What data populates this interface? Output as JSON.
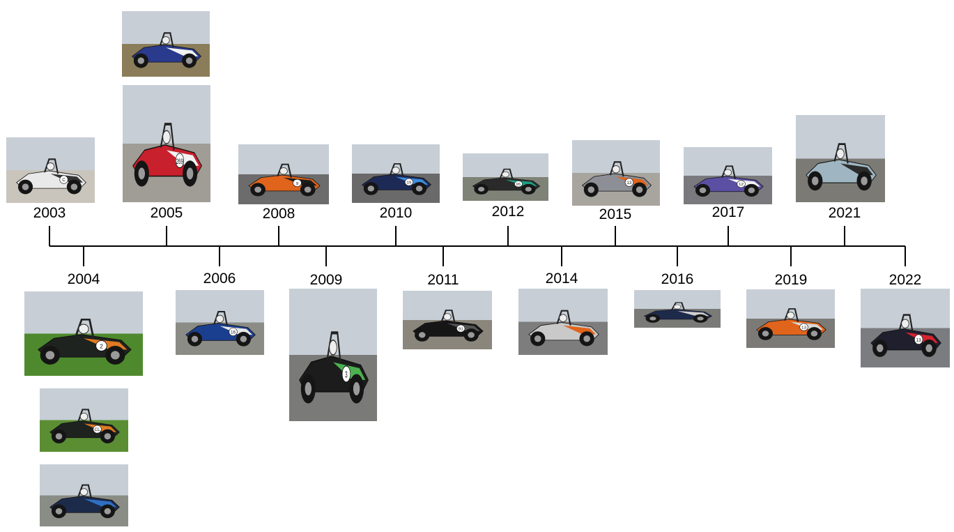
{
  "timeline": {
    "years": [
      "2003",
      "2004",
      "2005",
      "2006",
      "2008",
      "2009",
      "2010",
      "2011",
      "2012",
      "2014",
      "2015",
      "2016",
      "2017",
      "2019",
      "2021",
      "2022"
    ]
  },
  "photos": {
    "y2003": {
      "body": "#e9e9e9",
      "accent": "#333333",
      "ground": "#c9c5bd",
      "number": "C"
    },
    "y2004a": {
      "body": "#1f2320",
      "accent": "#e07a22",
      "ground": "#4e8a2d",
      "number": "2"
    },
    "y2004b": {
      "body": "#1f2320",
      "accent": "#e07a22",
      "ground": "#5b8e33",
      "number": "CL"
    },
    "y2004c": {
      "body": "#1d2b4a",
      "accent": "#2f6fc4",
      "ground": "#8a8d86",
      "number": ""
    },
    "y2005a": {
      "body": "#2a3a8c",
      "accent": "#f2f2f2",
      "ground": "#8c7d5a",
      "number": ""
    },
    "y2005b": {
      "body": "#c8202c",
      "accent": "#f2f2f2",
      "ground": "#a09c96",
      "number": "269"
    },
    "y2006": {
      "body": "#1b3f8f",
      "accent": "#e8e8e8",
      "ground": "#8c8c86",
      "number": "16"
    },
    "y2008": {
      "body": "#e0641b",
      "accent": "#1c1c1c",
      "ground": "#6c6c6c",
      "number": "9"
    },
    "y2009": {
      "body": "#1c1c1c",
      "accent": "#4caf50",
      "ground": "#7a7a78",
      "number": "3"
    },
    "y2010": {
      "body": "#1d2a55",
      "accent": "#3d8de0",
      "ground": "#6a6a6a",
      "number": "19"
    },
    "y2011": {
      "body": "#161616",
      "accent": "#555555",
      "ground": "#8b867c",
      "number": "91"
    },
    "y2012": {
      "body": "#2a2a2a",
      "accent": "#1e9c7f",
      "ground": "#7f8276",
      "number": "95"
    },
    "y2014": {
      "body": "#c9c9c9",
      "accent": "#e0641b",
      "ground": "#7d7d7d",
      "number": ""
    },
    "y2015": {
      "body": "#8c8f95",
      "accent": "#e0641b",
      "ground": "#a8a49e",
      "number": "13"
    },
    "y2016": {
      "body": "#1e2a4a",
      "accent": "#cfcfcf",
      "ground": "#7a7a76",
      "number": ""
    },
    "y2017": {
      "body": "#5b4fa3",
      "accent": "#f2f2f2",
      "ground": "#7a7a7e",
      "number": "12"
    },
    "y2019": {
      "body": "#e0641b",
      "accent": "#d9d9d9",
      "ground": "#7b7a76",
      "number": "13"
    },
    "y2021": {
      "body": "#9fb6c2",
      "accent": "#2b2b2b",
      "ground": "#7b7a74",
      "number": ""
    },
    "y2022": {
      "body": "#1f1f2e",
      "accent": "#d7232f",
      "ground": "#7a7c80",
      "number": "13"
    }
  },
  "colors": {
    "line": "#000000",
    "background": "#ffffff"
  }
}
